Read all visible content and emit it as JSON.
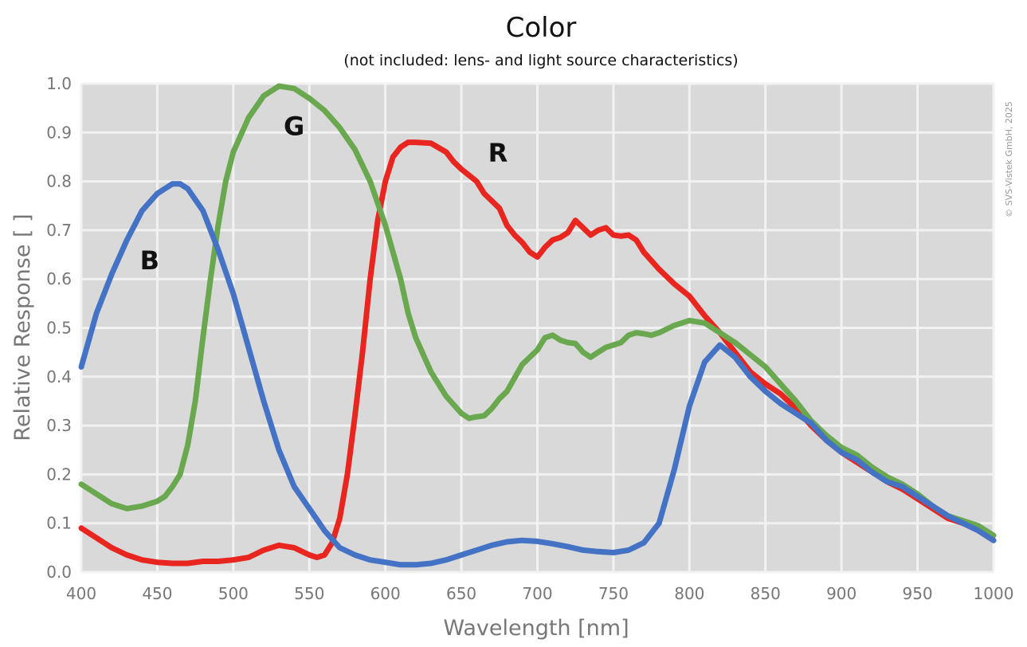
{
  "chart_data": {
    "type": "line",
    "title": "Color",
    "subtitle": "(not included: lens- and light source characteristics)",
    "xlabel": "Wavelength [nm]",
    "ylabel": "Relative Response [ ]",
    "xlim": [
      400,
      1000
    ],
    "ylim": [
      0.0,
      1.0
    ],
    "x_ticks": [
      "400",
      "450",
      "500",
      "550",
      "600",
      "650",
      "700",
      "750",
      "800",
      "850",
      "900",
      "950",
      "1000"
    ],
    "y_ticks": [
      "0.0",
      "0.1",
      "0.2",
      "0.3",
      "0.4",
      "0.5",
      "0.6",
      "0.7",
      "0.8",
      "0.9",
      "1.0"
    ],
    "grid": true,
    "background": "#d9d9d9",
    "grid_color": "#f2f2f2",
    "copyright": "© SVS-Vistek GmbH, 2025",
    "series": [
      {
        "name": "R",
        "color": "#e8261f",
        "label_at": [
          674,
          0.84
        ],
        "points": [
          [
            400,
            0.09
          ],
          [
            410,
            0.07
          ],
          [
            420,
            0.05
          ],
          [
            430,
            0.035
          ],
          [
            440,
            0.025
          ],
          [
            450,
            0.02
          ],
          [
            460,
            0.018
          ],
          [
            470,
            0.018
          ],
          [
            480,
            0.022
          ],
          [
            490,
            0.022
          ],
          [
            500,
            0.025
          ],
          [
            510,
            0.03
          ],
          [
            520,
            0.045
          ],
          [
            530,
            0.055
          ],
          [
            540,
            0.05
          ],
          [
            550,
            0.035
          ],
          [
            555,
            0.03
          ],
          [
            560,
            0.035
          ],
          [
            565,
            0.06
          ],
          [
            570,
            0.11
          ],
          [
            575,
            0.2
          ],
          [
            580,
            0.32
          ],
          [
            585,
            0.45
          ],
          [
            590,
            0.6
          ],
          [
            595,
            0.72
          ],
          [
            600,
            0.8
          ],
          [
            605,
            0.85
          ],
          [
            610,
            0.87
          ],
          [
            615,
            0.88
          ],
          [
            620,
            0.88
          ],
          [
            630,
            0.878
          ],
          [
            640,
            0.86
          ],
          [
            645,
            0.84
          ],
          [
            650,
            0.825
          ],
          [
            660,
            0.8
          ],
          [
            665,
            0.775
          ],
          [
            670,
            0.76
          ],
          [
            675,
            0.745
          ],
          [
            680,
            0.71
          ],
          [
            685,
            0.69
          ],
          [
            690,
            0.675
          ],
          [
            695,
            0.655
          ],
          [
            700,
            0.645
          ],
          [
            705,
            0.665
          ],
          [
            710,
            0.68
          ],
          [
            715,
            0.685
          ],
          [
            720,
            0.695
          ],
          [
            725,
            0.72
          ],
          [
            730,
            0.705
          ],
          [
            735,
            0.69
          ],
          [
            740,
            0.7
          ],
          [
            745,
            0.705
          ],
          [
            750,
            0.69
          ],
          [
            755,
            0.688
          ],
          [
            760,
            0.69
          ],
          [
            765,
            0.68
          ],
          [
            770,
            0.655
          ],
          [
            780,
            0.62
          ],
          [
            790,
            0.59
          ],
          [
            800,
            0.565
          ],
          [
            810,
            0.525
          ],
          [
            820,
            0.49
          ],
          [
            830,
            0.45
          ],
          [
            840,
            0.41
          ],
          [
            850,
            0.385
          ],
          [
            860,
            0.365
          ],
          [
            870,
            0.335
          ],
          [
            880,
            0.3
          ],
          [
            890,
            0.27
          ],
          [
            900,
            0.245
          ],
          [
            910,
            0.225
          ],
          [
            920,
            0.205
          ],
          [
            930,
            0.185
          ],
          [
            940,
            0.17
          ],
          [
            950,
            0.15
          ],
          [
            960,
            0.13
          ],
          [
            970,
            0.11
          ],
          [
            980,
            0.1
          ],
          [
            990,
            0.085
          ],
          [
            1000,
            0.065
          ]
        ]
      },
      {
        "name": "G",
        "color": "#6aa84f",
        "label_at": [
          540,
          0.895
        ],
        "points": [
          [
            400,
            0.18
          ],
          [
            410,
            0.16
          ],
          [
            420,
            0.14
          ],
          [
            430,
            0.13
          ],
          [
            440,
            0.135
          ],
          [
            450,
            0.145
          ],
          [
            455,
            0.155
          ],
          [
            460,
            0.175
          ],
          [
            465,
            0.2
          ],
          [
            470,
            0.26
          ],
          [
            475,
            0.35
          ],
          [
            480,
            0.48
          ],
          [
            485,
            0.6
          ],
          [
            490,
            0.71
          ],
          [
            495,
            0.8
          ],
          [
            500,
            0.86
          ],
          [
            510,
            0.93
          ],
          [
            520,
            0.975
          ],
          [
            530,
            0.995
          ],
          [
            540,
            0.99
          ],
          [
            550,
            0.97
          ],
          [
            560,
            0.945
          ],
          [
            570,
            0.91
          ],
          [
            580,
            0.865
          ],
          [
            590,
            0.8
          ],
          [
            600,
            0.71
          ],
          [
            610,
            0.6
          ],
          [
            615,
            0.53
          ],
          [
            620,
            0.48
          ],
          [
            630,
            0.41
          ],
          [
            640,
            0.36
          ],
          [
            650,
            0.325
          ],
          [
            655,
            0.315
          ],
          [
            660,
            0.318
          ],
          [
            665,
            0.32
          ],
          [
            670,
            0.335
          ],
          [
            675,
            0.355
          ],
          [
            680,
            0.37
          ],
          [
            690,
            0.425
          ],
          [
            700,
            0.455
          ],
          [
            705,
            0.48
          ],
          [
            710,
            0.485
          ],
          [
            715,
            0.475
          ],
          [
            720,
            0.47
          ],
          [
            725,
            0.468
          ],
          [
            730,
            0.45
          ],
          [
            735,
            0.44
          ],
          [
            740,
            0.45
          ],
          [
            745,
            0.46
          ],
          [
            750,
            0.465
          ],
          [
            755,
            0.47
          ],
          [
            760,
            0.485
          ],
          [
            765,
            0.49
          ],
          [
            770,
            0.488
          ],
          [
            775,
            0.485
          ],
          [
            780,
            0.49
          ],
          [
            790,
            0.505
          ],
          [
            800,
            0.515
          ],
          [
            810,
            0.51
          ],
          [
            820,
            0.49
          ],
          [
            830,
            0.47
          ],
          [
            840,
            0.445
          ],
          [
            850,
            0.42
          ],
          [
            860,
            0.385
          ],
          [
            870,
            0.35
          ],
          [
            880,
            0.31
          ],
          [
            890,
            0.28
          ],
          [
            900,
            0.255
          ],
          [
            910,
            0.24
          ],
          [
            920,
            0.215
          ],
          [
            930,
            0.195
          ],
          [
            940,
            0.18
          ],
          [
            950,
            0.16
          ],
          [
            960,
            0.135
          ],
          [
            970,
            0.115
          ],
          [
            980,
            0.105
          ],
          [
            990,
            0.095
          ],
          [
            1000,
            0.075
          ]
        ]
      },
      {
        "name": "B",
        "color": "#4472c4",
        "label_at": [
          445,
          0.62
        ],
        "points": [
          [
            400,
            0.42
          ],
          [
            410,
            0.53
          ],
          [
            420,
            0.61
          ],
          [
            430,
            0.68
          ],
          [
            440,
            0.74
          ],
          [
            450,
            0.775
          ],
          [
            460,
            0.795
          ],
          [
            465,
            0.795
          ],
          [
            470,
            0.785
          ],
          [
            480,
            0.74
          ],
          [
            490,
            0.66
          ],
          [
            500,
            0.57
          ],
          [
            510,
            0.46
          ],
          [
            520,
            0.35
          ],
          [
            530,
            0.25
          ],
          [
            540,
            0.175
          ],
          [
            550,
            0.13
          ],
          [
            560,
            0.085
          ],
          [
            570,
            0.05
          ],
          [
            580,
            0.035
          ],
          [
            590,
            0.025
          ],
          [
            600,
            0.02
          ],
          [
            610,
            0.015
          ],
          [
            620,
            0.015
          ],
          [
            630,
            0.018
          ],
          [
            640,
            0.025
          ],
          [
            650,
            0.035
          ],
          [
            660,
            0.045
          ],
          [
            670,
            0.055
          ],
          [
            680,
            0.062
          ],
          [
            690,
            0.065
          ],
          [
            700,
            0.063
          ],
          [
            710,
            0.058
          ],
          [
            720,
            0.052
          ],
          [
            730,
            0.045
          ],
          [
            740,
            0.042
          ],
          [
            750,
            0.04
          ],
          [
            760,
            0.045
          ],
          [
            770,
            0.06
          ],
          [
            780,
            0.1
          ],
          [
            790,
            0.21
          ],
          [
            800,
            0.34
          ],
          [
            810,
            0.43
          ],
          [
            820,
            0.465
          ],
          [
            830,
            0.44
          ],
          [
            840,
            0.4
          ],
          [
            850,
            0.37
          ],
          [
            860,
            0.345
          ],
          [
            870,
            0.325
          ],
          [
            880,
            0.305
          ],
          [
            890,
            0.27
          ],
          [
            900,
            0.245
          ],
          [
            910,
            0.23
          ],
          [
            920,
            0.205
          ],
          [
            930,
            0.185
          ],
          [
            940,
            0.175
          ],
          [
            950,
            0.155
          ],
          [
            960,
            0.135
          ],
          [
            970,
            0.115
          ],
          [
            980,
            0.1
          ],
          [
            990,
            0.085
          ],
          [
            1000,
            0.065
          ]
        ]
      }
    ]
  }
}
